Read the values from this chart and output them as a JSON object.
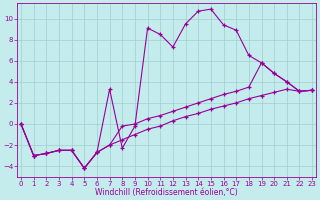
{
  "xlabel": "Windchill (Refroidissement éolien,°C)",
  "background_color": "#c4eced",
  "grid_color": "#9fcece",
  "line_color": "#990099",
  "x": [
    0,
    1,
    2,
    3,
    4,
    5,
    6,
    7,
    8,
    9,
    10,
    11,
    12,
    13,
    14,
    15,
    16,
    17,
    18,
    19,
    20,
    21,
    22,
    23
  ],
  "series_peak": [
    0.0,
    -3.0,
    -2.8,
    -2.5,
    -2.5,
    -4.2,
    -2.7,
    3.3,
    -2.3,
    -0.2,
    9.1,
    8.5,
    7.3,
    9.5,
    10.7,
    10.9,
    9.4,
    8.9,
    6.5,
    5.8,
    4.8,
    4.0,
    3.1,
    3.2
  ],
  "series_upper": [
    0.0,
    -3.0,
    -2.8,
    -2.5,
    -2.5,
    -4.2,
    -2.7,
    -2.0,
    -0.2,
    0.0,
    0.5,
    0.8,
    1.2,
    1.6,
    2.0,
    2.4,
    2.8,
    3.1,
    3.5,
    5.8,
    4.8,
    4.0,
    3.1,
    3.2
  ],
  "series_lower": [
    0.0,
    -3.0,
    -2.8,
    -2.5,
    -2.5,
    -4.2,
    -2.7,
    -2.0,
    -1.5,
    -1.0,
    -0.5,
    -0.2,
    0.3,
    0.7,
    1.0,
    1.4,
    1.7,
    2.0,
    2.4,
    2.7,
    3.0,
    3.3,
    3.1,
    3.2
  ],
  "ylim": [
    -5.0,
    11.5
  ],
  "xlim_min": -0.3,
  "xlim_max": 23.3,
  "yticks": [
    -4,
    -2,
    0,
    2,
    4,
    6,
    8,
    10
  ],
  "xticks": [
    0,
    1,
    2,
    3,
    4,
    5,
    6,
    7,
    8,
    9,
    10,
    11,
    12,
    13,
    14,
    15,
    16,
    17,
    18,
    19,
    20,
    21,
    22,
    23
  ],
  "tick_fontsize": 5.0,
  "xlabel_fontsize": 5.5,
  "marker_size": 3.0,
  "line_width": 0.8
}
